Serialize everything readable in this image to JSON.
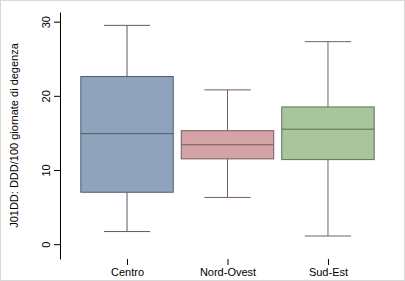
{
  "chart_data": {
    "type": "box",
    "y_label": "J01DD: DDD/100 giornate di degenza",
    "categories": [
      "Centro",
      "Nord-Ovest",
      "Sud-Est"
    ],
    "min": [
      1.7,
      6.3,
      1.1
    ],
    "q1": [
      7.0,
      11.5,
      11.4
    ],
    "median": [
      14.9,
      13.4,
      15.5
    ],
    "q3": [
      22.6,
      15.3,
      18.5
    ],
    "max": [
      29.5,
      20.8,
      27.3
    ],
    "colors": [
      "#8fa3bd",
      "#d3a3a6",
      "#a9c59c"
    ],
    "ylim": [
      -2,
      31.3
    ],
    "yticks": [
      0,
      10,
      20,
      30
    ],
    "grid": false
  }
}
